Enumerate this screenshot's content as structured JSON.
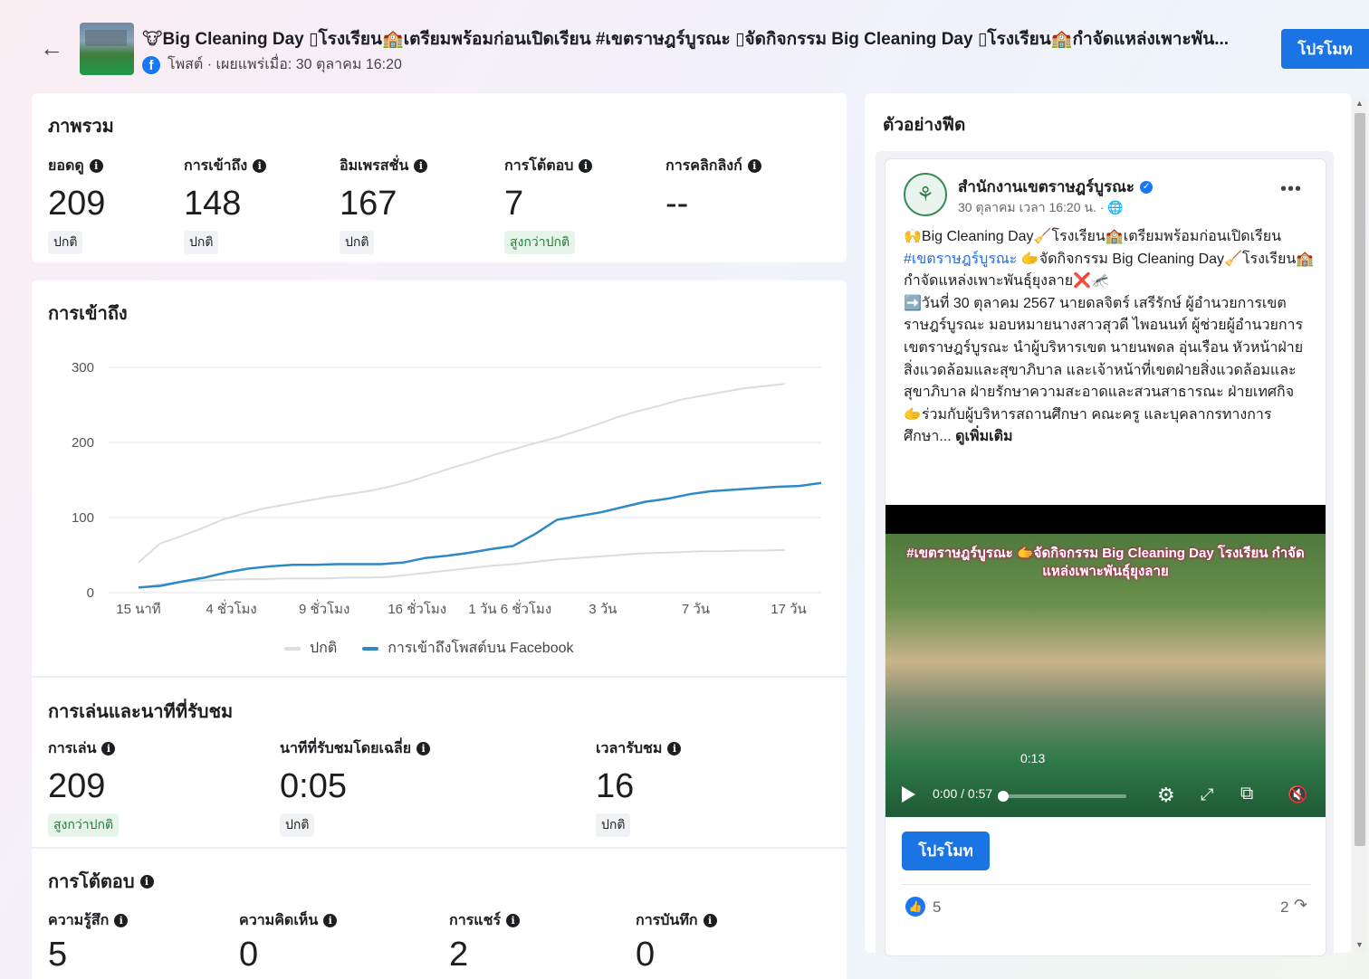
{
  "header": {
    "title": "🐮Big Cleaning Day ▯โรงเรียน🏫เตรียมพร้อมก่อนเปิดเรียน #เขตราษฎร์บูรณะ ▯จัดกิจกรรม Big Cleaning Day ▯โรงเรียน🏫กำจัดแหล่งเพาะพัน...",
    "meta": "โพสต์ · เผยแพร่เมื่อ: 30 ตุลาคม 16:20",
    "promote_label": "โปรโมท"
  },
  "overview": {
    "title": "ภาพรวม",
    "stats": [
      {
        "label": "ยอดดู",
        "value": "209",
        "badge": "ปกติ",
        "badge_type": "normal"
      },
      {
        "label": "การเข้าถึง",
        "value": "148",
        "badge": "ปกติ",
        "badge_type": "normal"
      },
      {
        "label": "อิมเพรสชั่น",
        "value": "167",
        "badge": "ปกติ",
        "badge_type": "normal"
      },
      {
        "label": "การโต้ตอบ",
        "value": "7",
        "badge": "สูงกว่าปกติ",
        "badge_type": "high"
      },
      {
        "label": "การคลิกลิงก์",
        "value": "--",
        "badge": "",
        "badge_type": ""
      }
    ]
  },
  "reach_section": {
    "title": "การเข้าถึง",
    "legend_normal": "ปกติ",
    "legend_reach": "การเข้าถึงโพสต์บน Facebook"
  },
  "chart_data": {
    "type": "line",
    "x_ticks": [
      "15 นาที",
      "4 ชั่วโมง",
      "9 ชั่วโมง",
      "16 ชั่วโมง",
      "1 วัน 6 ชั่วโมง",
      "3 วัน",
      "7 วัน",
      "17 วัน"
    ],
    "y_ticks": [
      0,
      100,
      200,
      300
    ],
    "ylim": [
      0,
      300
    ],
    "series": [
      {
        "name": "ปกติ",
        "color": "#dadde1",
        "values": [
          40,
          65,
          75,
          85,
          97,
          105,
          112,
          117,
          122,
          127,
          131,
          135,
          141,
          148,
          157,
          166,
          174,
          183,
          191,
          199,
          206,
          215,
          224,
          234,
          242,
          249,
          257,
          262,
          267,
          272,
          275,
          278
        ]
      },
      {
        "name": "ปกติ",
        "color": "#dadde1",
        "values": [
          6,
          11,
          14,
          16,
          17,
          18,
          18,
          19,
          19,
          19,
          20,
          20,
          21,
          24,
          27,
          30,
          33,
          36,
          38,
          41,
          44,
          46,
          48,
          50,
          52,
          53,
          54,
          55,
          55,
          56,
          56,
          57
        ]
      },
      {
        "name": "การเข้าถึงโพสต์บน Facebook",
        "color": "#2e89c6",
        "values": [
          7,
          9,
          15,
          20,
          27,
          32,
          35,
          37,
          37,
          38,
          38,
          38,
          40,
          46,
          49,
          53,
          58,
          62,
          78,
          97,
          102,
          107,
          114,
          121,
          125,
          131,
          135,
          137,
          139,
          141,
          142,
          146
        ]
      }
    ]
  },
  "playback": {
    "title": "การเล่นและนาทีที่รับชม",
    "stats": [
      {
        "label": "การเล่น",
        "value": "209",
        "badge": "สูงกว่าปกติ",
        "badge_type": "high"
      },
      {
        "label": "นาทีที่รับชมโดยเฉลี่ย",
        "value": "0:05",
        "badge": "ปกติ",
        "badge_type": "normal"
      },
      {
        "label": "เวลารับชม",
        "value": "16",
        "badge": "ปกติ",
        "badge_type": "normal"
      }
    ]
  },
  "engagement": {
    "title": "การโต้ตอบ",
    "stats": [
      {
        "label": "ความรู้สึก",
        "value": "5"
      },
      {
        "label": "ความคิดเห็น",
        "value": "0"
      },
      {
        "label": "การแชร์",
        "value": "2"
      },
      {
        "label": "การบันทึก",
        "value": "0"
      }
    ]
  },
  "preview": {
    "title": "ตัวอย่างฟีด",
    "page_name": "สำนักงานเขตราษฎร์บูรณะ",
    "post_time": "30 ตุลาคม เวลา 16:20 น. · 🌐",
    "text_line1": "🙌Big Cleaning Day🧹โรงเรียน🏫เตรียมพร้อมก่อนเปิดเรียน",
    "hashtag": "#เขตราษฎร์บูรณะ",
    "text_line2": " 🫱จัดกิจกรรม Big Cleaning Day🧹โรงเรียน🏫กำจัดแหล่งเพาะพันธุ์ยุงลาย❌🦟",
    "text_line3": "➡️วันที่ 30 ตุลาคม 2567 นายดลจิตร์ เสรีรักษ์ ผู้อำนวยการเขตราษฎร์บูรณะ มอบหมายนางสาวสุวดี ไพอนนท์ ผู้ช่วยผู้อำนวยการเขตราษฎร์บูรณะ นำผู้บริหารเขต นายนพดล อุ่นเรือน หัวหน้าฝ่ายสิ่งแวดล้อมและสุขาภิบาล และเจ้าหน้าที่เขตฝ่ายสิ่งแวดล้อมและสุขาภิบาล ฝ่ายรักษาความสะอาดและสวนสาธารณะ ฝ่ายเทศกิจ",
    "text_line4": "🫱ร่วมกับผู้บริหารสถานศึกษา คณะครู และบุคลากรทางการศึกษา... ",
    "see_more": "ดูเพิ่มเติม",
    "video_banner": "#เขตราษฎร์บูรณะ 🫱จัดกิจกรรม Big Cleaning Day โรงเรียน กำจัดแหล่งเพาะพันธุ์ยุงลาย",
    "video_hover_time": "0:13",
    "video_time": "0:00 / 0:57",
    "video_progress": 0.0,
    "promote_label": "โปรโมท",
    "reaction_count": "5",
    "share_count": "2"
  }
}
